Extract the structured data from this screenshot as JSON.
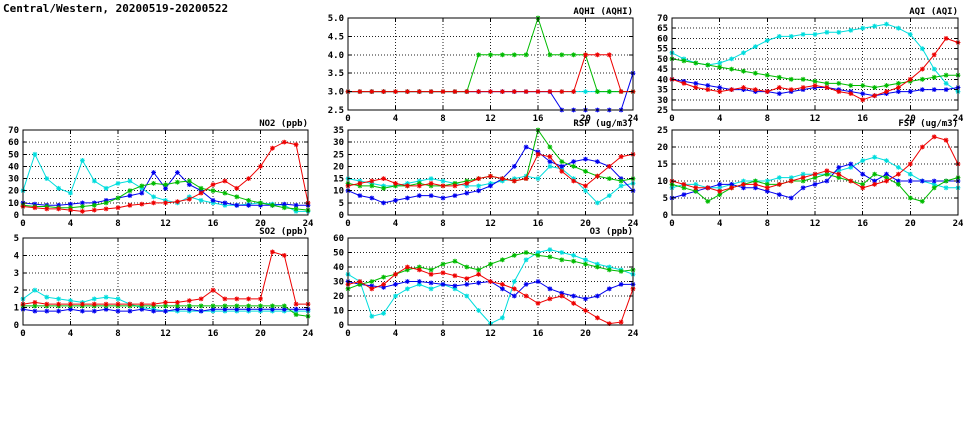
{
  "page": {
    "title": "Central/Western, 20200519-20200522"
  },
  "hours": [
    0,
    1,
    2,
    3,
    4,
    5,
    6,
    7,
    8,
    9,
    10,
    11,
    12,
    13,
    14,
    15,
    16,
    17,
    18,
    19,
    20,
    21,
    22,
    23,
    24
  ],
  "chart_data": [
    {
      "id": "aqhi",
      "type": "line",
      "title": "AQHI (AQHI)",
      "xlim": [
        0,
        24
      ],
      "xticks": [
        0,
        4,
        8,
        12,
        16,
        20,
        24
      ],
      "ylim": [
        2.5,
        5.0
      ],
      "yticks": [
        2.5,
        3.0,
        3.5,
        4.0,
        4.5,
        5.0
      ],
      "ytick_decimals": 1,
      "grid": true,
      "series": [
        {
          "name": "cyan",
          "color": "#00dddd",
          "values": [
            3,
            3,
            3,
            3,
            3,
            3,
            3,
            3,
            3,
            3,
            3,
            3,
            3,
            3,
            3,
            3,
            3,
            3,
            3,
            3,
            3,
            3,
            3,
            3,
            3
          ]
        },
        {
          "name": "blue",
          "color": "#0000ee",
          "values": [
            3,
            3,
            3,
            3,
            3,
            3,
            3,
            3,
            3,
            3,
            3,
            3,
            3,
            3,
            3,
            3,
            3,
            3,
            2.5,
            2.5,
            2.5,
            2.5,
            2.5,
            2.5,
            3.5
          ]
        },
        {
          "name": "green",
          "color": "#00bb00",
          "values": [
            3,
            3,
            3,
            3,
            3,
            3,
            3,
            3,
            3,
            3,
            3,
            4,
            4,
            4,
            4,
            4,
            5,
            4,
            4,
            4,
            4,
            3,
            3,
            3,
            3
          ]
        },
        {
          "name": "red",
          "color": "#ee0000",
          "values": [
            3,
            3,
            3,
            3,
            3,
            3,
            3,
            3,
            3,
            3,
            3,
            3,
            3,
            3,
            3,
            3,
            3,
            3,
            3,
            3,
            4,
            4,
            4,
            3,
            3
          ]
        }
      ]
    },
    {
      "id": "aqi",
      "type": "line",
      "title": "AQI (AQI)",
      "xlim": [
        0,
        24
      ],
      "xticks": [
        0,
        4,
        8,
        12,
        16,
        20,
        24
      ],
      "ylim": [
        25,
        70
      ],
      "yticks": [
        25,
        30,
        35,
        40,
        45,
        50,
        55,
        60,
        65,
        70
      ],
      "ytick_decimals": 0,
      "grid": true,
      "series": [
        {
          "name": "cyan",
          "color": "#00dddd",
          "values": [
            53,
            50,
            48,
            47,
            48,
            50,
            53,
            56,
            59,
            61,
            61,
            62,
            62,
            63,
            63,
            64,
            65,
            66,
            67,
            65,
            62,
            55,
            45,
            38,
            34
          ]
        },
        {
          "name": "blue",
          "color": "#0000ee",
          "values": [
            40,
            39,
            38,
            37,
            36,
            35,
            35,
            34,
            34,
            33,
            34,
            35,
            36,
            36,
            35,
            34,
            33,
            32,
            33,
            34,
            34,
            35,
            35,
            35,
            36
          ]
        },
        {
          "name": "green",
          "color": "#00bb00",
          "values": [
            50,
            49,
            48,
            47,
            46,
            45,
            44,
            43,
            42,
            41,
            40,
            40,
            39,
            38,
            38,
            37,
            37,
            36,
            37,
            38,
            39,
            40,
            41,
            42,
            42
          ]
        },
        {
          "name": "red",
          "color": "#ee0000",
          "values": [
            40,
            38,
            36,
            35,
            34,
            35,
            36,
            35,
            34,
            36,
            35,
            36,
            37,
            36,
            34,
            33,
            30,
            32,
            34,
            36,
            40,
            45,
            52,
            60,
            58
          ]
        }
      ]
    },
    {
      "id": "no2",
      "type": "line",
      "title": "NO2 (ppb)",
      "xlim": [
        0,
        24
      ],
      "xticks": [
        0,
        4,
        8,
        12,
        16,
        20,
        24
      ],
      "ylim": [
        0,
        70
      ],
      "yticks": [
        0,
        10,
        20,
        30,
        40,
        50,
        60,
        70
      ],
      "ytick_decimals": 0,
      "grid": true,
      "series": [
        {
          "name": "cyan",
          "color": "#00dddd",
          "values": [
            20,
            50,
            30,
            22,
            18,
            45,
            28,
            22,
            26,
            28,
            22,
            15,
            12,
            10,
            15,
            12,
            10,
            8,
            8,
            9,
            10,
            9,
            8,
            3,
            3
          ]
        },
        {
          "name": "blue",
          "color": "#0000ee",
          "values": [
            10,
            9,
            8,
            8,
            9,
            10,
            10,
            12,
            14,
            16,
            18,
            35,
            22,
            35,
            25,
            20,
            12,
            10,
            8,
            8,
            8,
            8,
            9,
            8,
            8
          ]
        },
        {
          "name": "green",
          "color": "#00bb00",
          "values": [
            8,
            7,
            7,
            6,
            6,
            7,
            8,
            10,
            14,
            20,
            24,
            26,
            25,
            27,
            28,
            22,
            20,
            18,
            15,
            12,
            10,
            8,
            6,
            5,
            4
          ]
        },
        {
          "name": "red",
          "color": "#ee0000",
          "values": [
            7,
            6,
            5,
            5,
            4,
            3,
            4,
            5,
            6,
            8,
            9,
            10,
            10,
            11,
            13,
            18,
            25,
            28,
            22,
            30,
            40,
            55,
            60,
            58,
            10
          ]
        }
      ]
    },
    {
      "id": "rsp",
      "type": "line",
      "title": "RSP (ug/m3)",
      "xlim": [
        0,
        24
      ],
      "xticks": [
        0,
        4,
        8,
        12,
        16,
        20,
        24
      ],
      "ylim": [
        0,
        35
      ],
      "yticks": [
        0,
        5,
        10,
        15,
        20,
        25,
        30,
        35
      ],
      "ytick_decimals": 0,
      "grid": true,
      "series": [
        {
          "name": "cyan",
          "color": "#00dddd",
          "values": [
            15,
            14,
            13,
            12,
            12,
            13,
            14,
            15,
            14,
            13,
            12,
            12,
            13,
            14,
            15,
            16,
            15,
            20,
            19,
            15,
            10,
            5,
            8,
            12,
            13
          ]
        },
        {
          "name": "blue",
          "color": "#0000ee",
          "values": [
            10,
            8,
            7,
            5,
            6,
            7,
            8,
            8,
            7,
            8,
            9,
            10,
            12,
            15,
            20,
            28,
            26,
            22,
            20,
            22,
            23,
            22,
            20,
            15,
            10
          ]
        },
        {
          "name": "green",
          "color": "#00bb00",
          "values": [
            13,
            12,
            12,
            11,
            12,
            12,
            13,
            12,
            12,
            13,
            14,
            15,
            16,
            15,
            14,
            15,
            35,
            28,
            22,
            20,
            18,
            16,
            15,
            14,
            15
          ]
        },
        {
          "name": "red",
          "color": "#ee0000",
          "values": [
            12,
            13,
            14,
            15,
            13,
            12,
            12,
            13,
            12,
            12,
            13,
            15,
            16,
            15,
            14,
            15,
            25,
            24,
            18,
            14,
            12,
            16,
            20,
            24,
            25
          ]
        }
      ]
    },
    {
      "id": "fsp",
      "type": "line",
      "title": "FSP (ug/m3)",
      "xlim": [
        0,
        24
      ],
      "xticks": [
        0,
        4,
        8,
        12,
        16,
        20,
        24
      ],
      "ylim": [
        0,
        25
      ],
      "yticks": [
        0,
        5,
        10,
        15,
        20,
        25
      ],
      "ytick_decimals": 0,
      "grid": true,
      "series": [
        {
          "name": "cyan",
          "color": "#00dddd",
          "values": [
            8,
            9,
            9,
            8,
            8,
            9,
            10,
            10,
            10,
            11,
            11,
            12,
            12,
            12,
            13,
            14,
            16,
            17,
            16,
            14,
            12,
            10,
            9,
            8,
            8
          ]
        },
        {
          "name": "blue",
          "color": "#0000ee",
          "values": [
            5,
            6,
            7,
            8,
            9,
            9,
            8,
            8,
            7,
            6,
            5,
            8,
            9,
            10,
            14,
            15,
            12,
            10,
            12,
            10,
            10,
            10,
            10,
            10,
            10
          ]
        },
        {
          "name": "green",
          "color": "#00bb00",
          "values": [
            9,
            8,
            7,
            4,
            6,
            8,
            9,
            10,
            9,
            9,
            10,
            10,
            11,
            12,
            11,
            10,
            9,
            12,
            11,
            9,
            5,
            4,
            8,
            10,
            11
          ]
        },
        {
          "name": "red",
          "color": "#ee0000",
          "values": [
            10,
            9,
            8,
            8,
            7,
            8,
            9,
            9,
            8,
            9,
            10,
            11,
            12,
            13,
            12,
            10,
            8,
            9,
            10,
            12,
            15,
            20,
            23,
            22,
            15
          ]
        }
      ]
    },
    {
      "id": "so2",
      "type": "line",
      "title": "SO2 (ppb)",
      "xlim": [
        0,
        24
      ],
      "xticks": [
        0,
        4,
        8,
        12,
        16,
        20,
        24
      ],
      "ylim": [
        0,
        5
      ],
      "yticks": [
        0,
        1,
        2,
        3,
        4,
        5
      ],
      "ytick_decimals": 0,
      "grid": true,
      "series": [
        {
          "name": "cyan",
          "color": "#00dddd",
          "values": [
            1.5,
            2,
            1.6,
            1.5,
            1.4,
            1.3,
            1.5,
            1.6,
            1.5,
            1.2,
            1,
            0.9,
            0.8,
            0.8,
            0.8,
            0.8,
            0.8,
            0.8,
            0.8,
            0.8,
            0.8,
            0.8,
            0.8,
            0.8,
            0.8
          ]
        },
        {
          "name": "blue",
          "color": "#0000ee",
          "values": [
            0.9,
            0.8,
            0.8,
            0.8,
            0.9,
            0.8,
            0.8,
            0.9,
            0.8,
            0.8,
            0.9,
            0.8,
            0.8,
            0.9,
            0.9,
            0.8,
            0.9,
            0.9,
            0.9,
            0.9,
            0.9,
            0.9,
            0.9,
            0.9,
            0.9
          ]
        },
        {
          "name": "green",
          "color": "#00bb00",
          "values": [
            1.1,
            1.1,
            1.1,
            1.1,
            1.1,
            1.1,
            1.1,
            1.1,
            1.1,
            1.1,
            1.1,
            1.1,
            1.1,
            1.1,
            1.1,
            1.1,
            1.1,
            1.1,
            1.1,
            1.1,
            1.1,
            1.1,
            1.1,
            0.6,
            0.5
          ]
        },
        {
          "name": "red",
          "color": "#ee0000",
          "values": [
            1.2,
            1.3,
            1.2,
            1.2,
            1.2,
            1.2,
            1.2,
            1.2,
            1.2,
            1.2,
            1.2,
            1.2,
            1.3,
            1.3,
            1.4,
            1.5,
            2,
            1.5,
            1.5,
            1.5,
            1.5,
            4.2,
            4,
            1.2,
            1.2
          ]
        }
      ]
    },
    {
      "id": "o3",
      "type": "line",
      "title": "O3 (ppb)",
      "xlim": [
        0,
        24
      ],
      "xticks": [
        0,
        4,
        8,
        12,
        16,
        20,
        24
      ],
      "ylim": [
        0,
        60
      ],
      "yticks": [
        0,
        10,
        20,
        30,
        40,
        50,
        60
      ],
      "ytick_decimals": 0,
      "grid": true,
      "series": [
        {
          "name": "cyan",
          "color": "#00dddd",
          "values": [
            35,
            30,
            6,
            8,
            20,
            25,
            28,
            25,
            28,
            25,
            20,
            10,
            1,
            5,
            30,
            45,
            50,
            52,
            50,
            48,
            45,
            42,
            40,
            38,
            35
          ]
        },
        {
          "name": "blue",
          "color": "#0000ee",
          "values": [
            30,
            28,
            27,
            26,
            28,
            30,
            30,
            29,
            28,
            27,
            28,
            29,
            30,
            25,
            20,
            28,
            30,
            25,
            22,
            20,
            18,
            20,
            25,
            28,
            28
          ]
        },
        {
          "name": "green",
          "color": "#00bb00",
          "values": [
            25,
            28,
            30,
            33,
            35,
            38,
            40,
            38,
            42,
            44,
            40,
            38,
            42,
            45,
            48,
            50,
            48,
            47,
            45,
            44,
            42,
            40,
            38,
            37,
            38
          ]
        },
        {
          "name": "red",
          "color": "#ee0000",
          "values": [
            28,
            30,
            25,
            28,
            35,
            40,
            38,
            35,
            36,
            34,
            32,
            35,
            30,
            28,
            25,
            20,
            15,
            18,
            20,
            15,
            10,
            5,
            1,
            2,
            25
          ]
        }
      ]
    }
  ]
}
